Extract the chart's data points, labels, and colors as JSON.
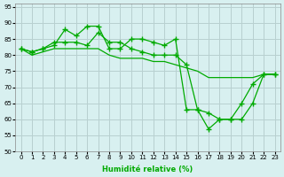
{
  "title": "",
  "xlabel": "Humidité relative (%)",
  "ylabel": "",
  "background_color": "#d8f0f0",
  "grid_color": "#b8d0d0",
  "line_color": "#00aa00",
  "marker_color": "#00aa00",
  "xlim": [
    -0.5,
    23.5
  ],
  "ylim": [
    50,
    96
  ],
  "yticks": [
    50,
    55,
    60,
    65,
    70,
    75,
    80,
    85,
    90,
    95
  ],
  "xticks": [
    0,
    1,
    2,
    3,
    4,
    5,
    6,
    7,
    8,
    9,
    10,
    11,
    12,
    13,
    14,
    15,
    16,
    17,
    18,
    19,
    20,
    21,
    22,
    23
  ],
  "series": [
    [
      82,
      81,
      82,
      83,
      88,
      86,
      89,
      89,
      82,
      82,
      85,
      85,
      84,
      83,
      85,
      63,
      63,
      57,
      60,
      60,
      65,
      71,
      74,
      74
    ],
    [
      82,
      81,
      82,
      84,
      84,
      84,
      83,
      87,
      84,
      84,
      82,
      81,
      80,
      80,
      80,
      77,
      63,
      62,
      60,
      60,
      60,
      65,
      74,
      74
    ],
    [
      82,
      80,
      81,
      82,
      82,
      82,
      82,
      82,
      80,
      79,
      79,
      79,
      78,
      78,
      77,
      76,
      75,
      73,
      73,
      73,
      73,
      73,
      74,
      74
    ]
  ],
  "series_x": [
    [
      0,
      1,
      2,
      3,
      4,
      5,
      6,
      7,
      8,
      9,
      10,
      11,
      12,
      13,
      14,
      15,
      16,
      17,
      18,
      19,
      20,
      21,
      22,
      23
    ],
    [
      0,
      1,
      2,
      3,
      4,
      5,
      6,
      7,
      8,
      9,
      10,
      11,
      12,
      13,
      14,
      15,
      16,
      17,
      18,
      19,
      20,
      21,
      22,
      23
    ],
    [
      0,
      1,
      2,
      3,
      4,
      5,
      6,
      7,
      8,
      9,
      10,
      11,
      12,
      13,
      14,
      15,
      16,
      17,
      18,
      19,
      20,
      21,
      22,
      23
    ]
  ],
  "has_markers": [
    true,
    true,
    false
  ]
}
